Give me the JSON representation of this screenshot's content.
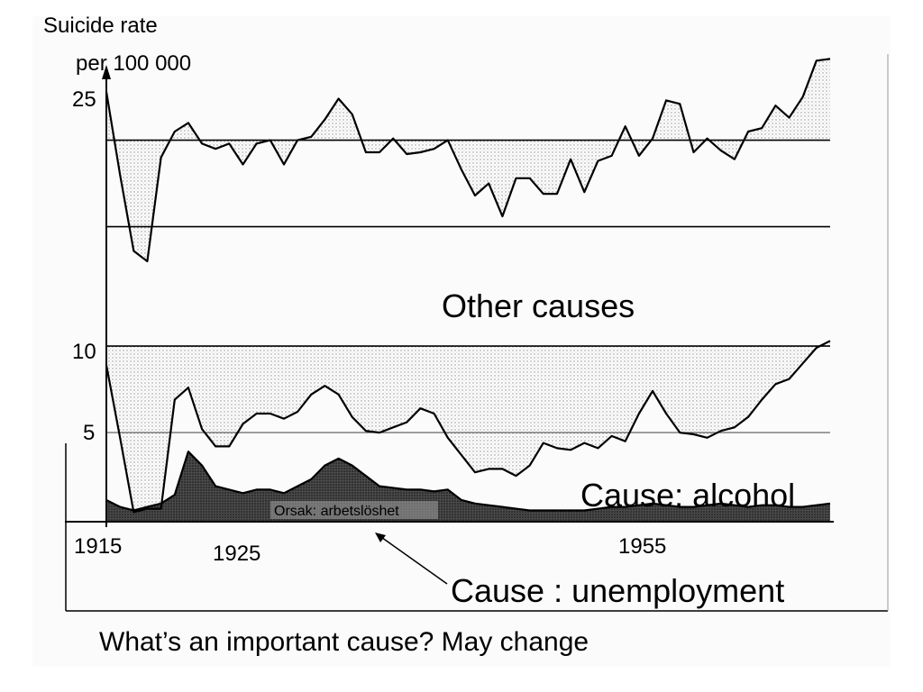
{
  "chart_data": {
    "type": "line",
    "ylabel_line1": "Suicide rate",
    "ylabel_line2": "per 100 000",
    "y_ticks": [
      {
        "value": 25,
        "label": "25"
      },
      {
        "value": 10,
        "label": "10"
      },
      {
        "value": 5,
        "label": "5"
      }
    ],
    "x_ticks": [
      {
        "value": 1915,
        "label": "1915"
      },
      {
        "value": 1925,
        "label": "1925"
      },
      {
        "value": 1955,
        "label": "1955"
      }
    ],
    "annotations": {
      "other": "Other causes",
      "alcohol": "Cause: alcohol",
      "unemployment": "Cause : unemployment",
      "inner_label": "Orsak: arbetslöshet"
    },
    "subtitle": "What’s an important cause? May change",
    "series": [
      {
        "values": [
          [
            1915,
            24.8
          ],
          [
            1916,
            20.0
          ],
          [
            1917,
            15.6
          ],
          [
            1918,
            15.0
          ],
          [
            1919,
            21.0
          ],
          [
            1920,
            22.5
          ],
          [
            1921,
            23.0
          ],
          [
            1922,
            21.8
          ],
          [
            1923,
            21.5
          ],
          [
            1924,
            21.8
          ],
          [
            1925,
            20.6
          ],
          [
            1926,
            21.8
          ],
          [
            1927,
            22.0
          ],
          [
            1928,
            20.6
          ],
          [
            1929,
            22.0
          ],
          [
            1930,
            22.2
          ],
          [
            1931,
            23.2
          ],
          [
            1932,
            24.4
          ],
          [
            1933,
            23.5
          ],
          [
            1934,
            21.3
          ],
          [
            1935,
            21.3
          ],
          [
            1936,
            22.1
          ],
          [
            1937,
            21.2
          ],
          [
            1938,
            21.3
          ],
          [
            1939,
            21.5
          ],
          [
            1940,
            22.0
          ],
          [
            1941,
            20.3
          ],
          [
            1942,
            18.8
          ],
          [
            1943,
            19.5
          ],
          [
            1944,
            17.6
          ],
          [
            1945,
            19.8
          ],
          [
            1946,
            19.8
          ],
          [
            1947,
            18.9
          ],
          [
            1948,
            18.9
          ],
          [
            1949,
            20.9
          ],
          [
            1950,
            19.0
          ],
          [
            1951,
            20.8
          ],
          [
            1952,
            21.1
          ],
          [
            1953,
            22.8
          ],
          [
            1954,
            21.1
          ],
          [
            1955,
            22.1
          ],
          [
            1956,
            24.3
          ],
          [
            1957,
            24.1
          ],
          [
            1958,
            21.3
          ],
          [
            1959,
            22.1
          ],
          [
            1960,
            21.4
          ],
          [
            1961,
            20.9
          ],
          [
            1962,
            22.5
          ],
          [
            1963,
            22.7
          ],
          [
            1964,
            24.0
          ],
          [
            1965,
            23.3
          ],
          [
            1966,
            24.5
          ],
          [
            1967,
            26.6
          ],
          [
            1968,
            26.7
          ]
        ]
      },
      {
        "values": [
          [
            1915,
            9.0
          ],
          [
            1916,
            4.8
          ],
          [
            1917,
            0.5
          ],
          [
            1918,
            0.7
          ],
          [
            1919,
            0.7
          ],
          [
            1920,
            7.0
          ],
          [
            1921,
            7.7
          ],
          [
            1922,
            5.3
          ],
          [
            1923,
            4.3
          ],
          [
            1924,
            4.3
          ],
          [
            1925,
            5.6
          ],
          [
            1926,
            6.2
          ],
          [
            1927,
            6.2
          ],
          [
            1928,
            5.9
          ],
          [
            1929,
            6.3
          ],
          [
            1930,
            7.3
          ],
          [
            1931,
            7.8
          ],
          [
            1932,
            7.3
          ],
          [
            1933,
            6.0
          ],
          [
            1934,
            5.2
          ],
          [
            1935,
            5.1
          ],
          [
            1936,
            5.4
          ],
          [
            1937,
            5.7
          ],
          [
            1938,
            6.5
          ],
          [
            1939,
            6.2
          ],
          [
            1940,
            4.8
          ],
          [
            1941,
            3.8
          ],
          [
            1942,
            2.8
          ],
          [
            1943,
            3.0
          ],
          [
            1944,
            3.0
          ],
          [
            1945,
            2.6
          ],
          [
            1946,
            3.2
          ],
          [
            1947,
            4.5
          ],
          [
            1948,
            4.2
          ],
          [
            1949,
            4.1
          ],
          [
            1950,
            4.5
          ],
          [
            1951,
            4.2
          ],
          [
            1952,
            4.9
          ],
          [
            1953,
            4.6
          ],
          [
            1954,
            6.2
          ],
          [
            1955,
            7.5
          ],
          [
            1956,
            6.2
          ],
          [
            1957,
            5.1
          ],
          [
            1958,
            5.0
          ],
          [
            1959,
            4.8
          ],
          [
            1960,
            5.2
          ],
          [
            1961,
            5.4
          ],
          [
            1962,
            6.0
          ],
          [
            1963,
            7.0
          ],
          [
            1964,
            7.9
          ],
          [
            1965,
            8.2
          ],
          [
            1966,
            9.1
          ],
          [
            1967,
            10.0
          ],
          [
            1968,
            10.4
          ]
        ]
      },
      {
        "values": [
          [
            1915,
            1.2
          ],
          [
            1916,
            0.8
          ],
          [
            1917,
            0.6
          ],
          [
            1918,
            0.8
          ],
          [
            1919,
            1.0
          ],
          [
            1920,
            1.5
          ],
          [
            1921,
            4.0
          ],
          [
            1922,
            3.2
          ],
          [
            1923,
            2.0
          ],
          [
            1924,
            1.8
          ],
          [
            1925,
            1.6
          ],
          [
            1926,
            1.8
          ],
          [
            1927,
            1.8
          ],
          [
            1928,
            1.6
          ],
          [
            1929,
            2.0
          ],
          [
            1930,
            2.4
          ],
          [
            1931,
            3.2
          ],
          [
            1932,
            3.6
          ],
          [
            1933,
            3.2
          ],
          [
            1934,
            2.6
          ],
          [
            1935,
            2.0
          ],
          [
            1936,
            1.9
          ],
          [
            1937,
            1.8
          ],
          [
            1938,
            1.8
          ],
          [
            1939,
            1.7
          ],
          [
            1940,
            1.8
          ],
          [
            1941,
            1.2
          ],
          [
            1942,
            1.0
          ],
          [
            1943,
            0.9
          ],
          [
            1944,
            0.8
          ],
          [
            1945,
            0.7
          ],
          [
            1946,
            0.6
          ],
          [
            1947,
            0.6
          ],
          [
            1948,
            0.6
          ],
          [
            1949,
            0.6
          ],
          [
            1950,
            0.6
          ],
          [
            1951,
            0.7
          ],
          [
            1952,
            0.8
          ],
          [
            1953,
            0.8
          ],
          [
            1954,
            0.9
          ],
          [
            1955,
            1.0
          ],
          [
            1956,
            0.9
          ],
          [
            1957,
            0.8
          ],
          [
            1958,
            0.8
          ],
          [
            1959,
            0.9
          ],
          [
            1960,
            1.0
          ],
          [
            1961,
            0.9
          ],
          [
            1962,
            0.8
          ],
          [
            1963,
            0.9
          ],
          [
            1964,
            0.9
          ],
          [
            1965,
            0.8
          ],
          [
            1966,
            0.8
          ],
          [
            1967,
            0.9
          ],
          [
            1968,
            1.0
          ]
        ]
      }
    ],
    "baselines": [
      22.0,
      17.0,
      10.1,
      5.1
    ]
  }
}
